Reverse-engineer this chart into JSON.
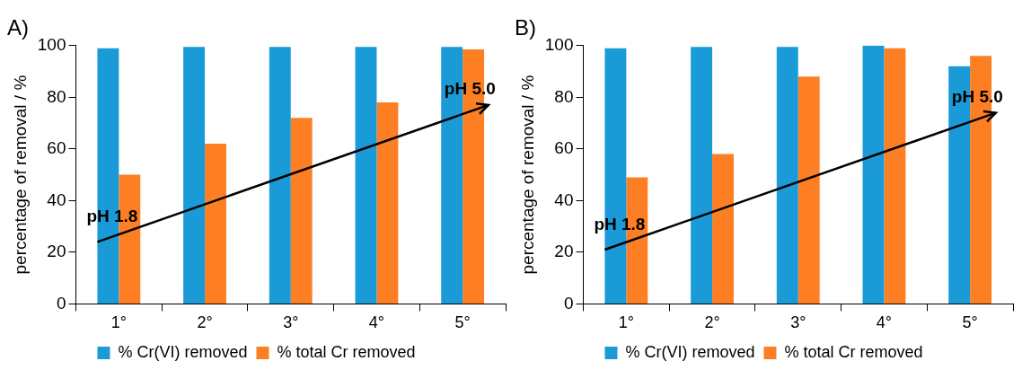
{
  "chart_data": [
    {
      "type": "bar",
      "title": "A)",
      "ylabel": "percentage of removal / %",
      "categories": [
        "1°",
        "2°",
        "3°",
        "4°",
        "5°"
      ],
      "series": [
        {
          "name": "% Cr(VI) removed",
          "color": "#1a9bd7",
          "values": [
            99,
            99.5,
            99.5,
            99.5,
            99.5
          ]
        },
        {
          "name": "% total Cr removed",
          "color": "#fe7f23",
          "values": [
            50,
            62,
            72,
            78,
            98.5
          ]
        }
      ],
      "ylim": [
        0,
        100
      ],
      "yticks": [
        0,
        20,
        40,
        60,
        80,
        100
      ],
      "legend": "bottom",
      "annotations": [
        "pH 1.8",
        "pH 5.0"
      ]
    },
    {
      "type": "bar",
      "title": "B)",
      "ylabel": "percentage of removal / %",
      "categories": [
        "1°",
        "2°",
        "3°",
        "4°",
        "5°"
      ],
      "series": [
        {
          "name": "% Cr(VI) removed",
          "color": "#1a9bd7",
          "values": [
            99,
            99.5,
            99.5,
            100,
            92
          ]
        },
        {
          "name": "% total Cr removed",
          "color": "#fe7f23",
          "values": [
            49,
            58,
            88,
            99,
            96
          ]
        }
      ],
      "ylim": [
        0,
        100
      ],
      "yticks": [
        0,
        20,
        40,
        60,
        80,
        100
      ],
      "legend": "bottom",
      "annotations": [
        "pH 1.8",
        "pH 5.0"
      ]
    }
  ]
}
